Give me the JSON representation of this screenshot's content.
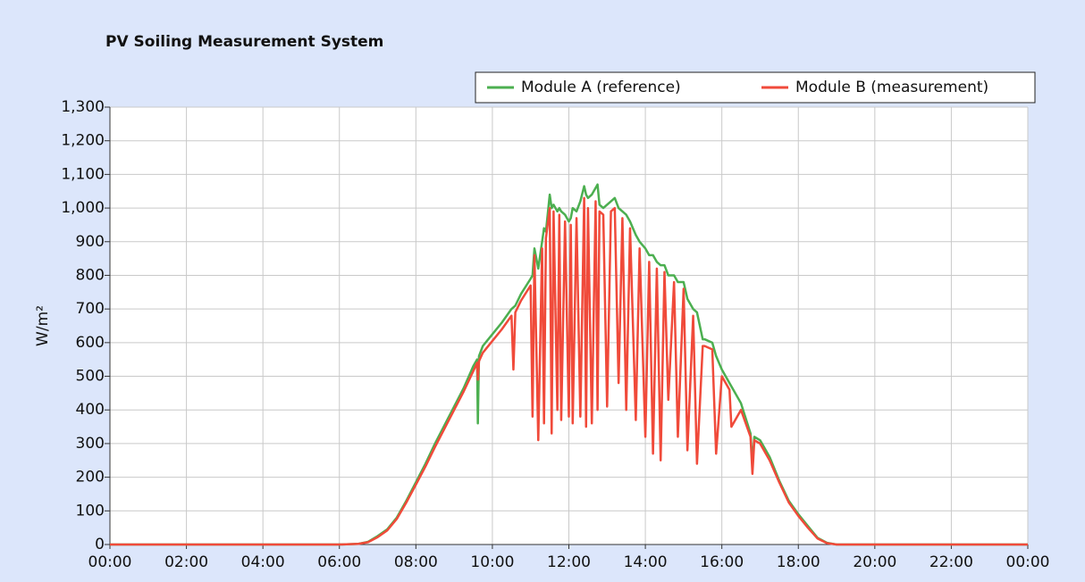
{
  "chart_data": {
    "type": "line",
    "title": "PV Soiling Measurement System",
    "y_label": "W/m²",
    "x": [
      0,
      6,
      6.5,
      6.75,
      7,
      7.25,
      7.5,
      7.75,
      8,
      8.25,
      8.5,
      8.75,
      9,
      9.25,
      9.5,
      9.6,
      9.62,
      9.65,
      9.75,
      10,
      10.25,
      10.5,
      10.55,
      10.6,
      10.75,
      11,
      11.05,
      11.1,
      11.2,
      11.3,
      11.35,
      11.4,
      11.5,
      11.55,
      11.6,
      11.7,
      11.75,
      11.8,
      11.9,
      12,
      12.05,
      12.1,
      12.2,
      12.3,
      12.4,
      12.45,
      12.5,
      12.6,
      12.7,
      12.75,
      12.8,
      12.9,
      13,
      13.1,
      13.2,
      13.3,
      13.4,
      13.5,
      13.6,
      13.75,
      13.85,
      14,
      14.1,
      14.2,
      14.3,
      14.4,
      14.5,
      14.6,
      14.75,
      14.85,
      15,
      15.1,
      15.25,
      15.35,
      15.5,
      15.55,
      15.75,
      15.85,
      16,
      16.2,
      16.25,
      16.5,
      16.75,
      16.8,
      16.85,
      17,
      17.25,
      17.5,
      17.75,
      18,
      18.25,
      18.5,
      18.75,
      19,
      24
    ],
    "series": [
      {
        "name": "Module A (reference)",
        "color": "#4caf50",
        "values": [
          0,
          0,
          2,
          8,
          25,
          45,
          80,
          130,
          185,
          240,
          300,
          355,
          410,
          465,
          530,
          550,
          360,
          560,
          590,
          625,
          660,
          700,
          705,
          710,
          745,
          790,
          800,
          880,
          820,
          900,
          940,
          930,
          1040,
          1000,
          1010,
          990,
          1000,
          990,
          980,
          960,
          970,
          1000,
          990,
          1020,
          1065,
          1040,
          1030,
          1040,
          1060,
          1070,
          1010,
          1000,
          1010,
          1020,
          1030,
          1000,
          990,
          980,
          960,
          920,
          900,
          880,
          860,
          860,
          840,
          830,
          830,
          800,
          800,
          780,
          780,
          730,
          700,
          690,
          610,
          610,
          600,
          560,
          520,
          480,
          470,
          420,
          330,
          240,
          320,
          310,
          260,
          190,
          130,
          90,
          55,
          20,
          5,
          0,
          0
        ]
      },
      {
        "name": "Module B (measurement)",
        "color": "#f04a3a",
        "values": [
          0,
          0,
          2,
          7,
          22,
          42,
          76,
          125,
          178,
          232,
          290,
          345,
          400,
          455,
          515,
          540,
          490,
          545,
          570,
          605,
          640,
          680,
          520,
          690,
          725,
          770,
          380,
          860,
          310,
          880,
          360,
          910,
          1000,
          330,
          990,
          400,
          980,
          370,
          960,
          380,
          950,
          360,
          970,
          380,
          1030,
          350,
          1000,
          360,
          1020,
          400,
          990,
          980,
          410,
          990,
          1000,
          480,
          970,
          400,
          940,
          370,
          880,
          320,
          840,
          270,
          820,
          250,
          810,
          430,
          780,
          320,
          760,
          280,
          680,
          240,
          590,
          590,
          580,
          270,
          500,
          460,
          350,
          400,
          320,
          210,
          310,
          300,
          250,
          185,
          125,
          85,
          50,
          18,
          4,
          0,
          0
        ]
      }
    ],
    "xlim": [
      0,
      24
    ],
    "xticks": [
      {
        "value": 0,
        "label": "00:00"
      },
      {
        "value": 2,
        "label": "02:00"
      },
      {
        "value": 4,
        "label": "04:00"
      },
      {
        "value": 6,
        "label": "06:00"
      },
      {
        "value": 8,
        "label": "08:00"
      },
      {
        "value": 10,
        "label": "10:00"
      },
      {
        "value": 12,
        "label": "12:00"
      },
      {
        "value": 14,
        "label": "14:00"
      },
      {
        "value": 16,
        "label": "16:00"
      },
      {
        "value": 18,
        "label": "18:00"
      },
      {
        "value": 20,
        "label": "20:00"
      },
      {
        "value": 22,
        "label": "22:00"
      },
      {
        "value": 24,
        "label": "00:00"
      }
    ],
    "ylim": [
      0,
      1300
    ],
    "yticks": [
      0,
      100,
      200,
      300,
      400,
      500,
      600,
      700,
      800,
      900,
      {
        "value": 1000,
        "label": "1,000"
      },
      {
        "value": 1100,
        "label": "1,100"
      },
      {
        "value": 1200,
        "label": "1,200"
      },
      {
        "value": 1300,
        "label": "1,300"
      }
    ],
    "grid": true,
    "legend": "top-right"
  }
}
